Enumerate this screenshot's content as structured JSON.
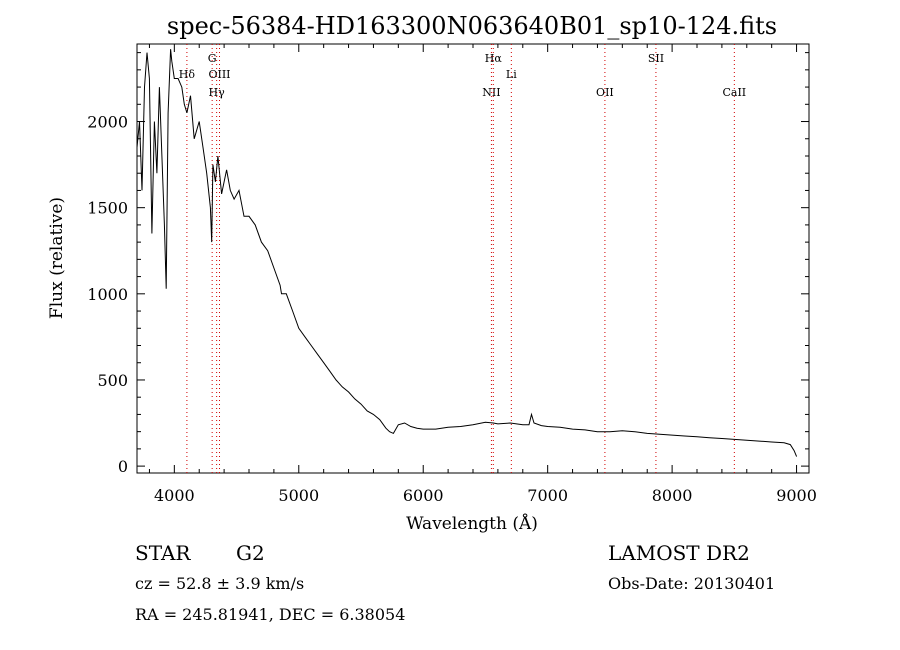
{
  "chart_data": {
    "type": "line",
    "title": "spec-56384-HD163300N063640B01_sp10-124.fits",
    "xlabel": "Wavelength (Å)",
    "ylabel": "Flux (relative)",
    "xlim": [
      3700,
      9100
    ],
    "ylim": [
      -40,
      2450
    ],
    "x_ticks": [
      4000,
      5000,
      6000,
      7000,
      8000,
      9000
    ],
    "x_tick_labels": [
      "4000",
      "5000",
      "6000",
      "7000",
      "8000",
      "9000"
    ],
    "y_ticks": [
      0,
      500,
      1000,
      1500,
      2000
    ],
    "y_tick_labels": [
      "0",
      "500",
      "1000",
      "1500",
      "2000"
    ],
    "grid": false,
    "series": [
      {
        "x": [
          3700,
          3720,
          3740,
          3760,
          3780,
          3800,
          3820,
          3840,
          3860,
          3880,
          3900,
          3920,
          3935,
          3950,
          3970,
          3980,
          4000,
          4030,
          4060,
          4080,
          4101,
          4130,
          4160,
          4200,
          4230,
          4260,
          4290,
          4300,
          4310,
          4330,
          4350,
          4380,
          4420,
          4450,
          4480,
          4520,
          4560,
          4600,
          4650,
          4700,
          4750,
          4800,
          4850,
          4861,
          4900,
          4950,
          5000,
          5050,
          5100,
          5150,
          5200,
          5250,
          5300,
          5350,
          5400,
          5450,
          5500,
          5550,
          5600,
          5650,
          5700,
          5730,
          5760,
          5800,
          5850,
          5900,
          5950,
          6000,
          6100,
          6200,
          6300,
          6400,
          6500,
          6563,
          6600,
          6700,
          6800,
          6850,
          6870,
          6890,
          6950,
          7000,
          7100,
          7200,
          7300,
          7400,
          7500,
          7600,
          7700,
          7800,
          7900,
          8000,
          8100,
          8200,
          8300,
          8400,
          8500,
          8600,
          8700,
          8800,
          8900,
          8950,
          8980,
          9000
        ],
        "y": [
          1850,
          2000,
          1600,
          2200,
          2400,
          2250,
          1350,
          2000,
          1700,
          2200,
          1800,
          1400,
          1030,
          2050,
          2420,
          2350,
          2250,
          2250,
          2200,
          2100,
          2050,
          2150,
          1900,
          2000,
          1850,
          1700,
          1500,
          1300,
          1750,
          1650,
          1800,
          1580,
          1720,
          1600,
          1550,
          1600,
          1450,
          1450,
          1400,
          1300,
          1250,
          1150,
          1050,
          1000,
          1000,
          900,
          800,
          750,
          700,
          650,
          600,
          550,
          500,
          460,
          430,
          390,
          360,
          320,
          300,
          270,
          220,
          200,
          190,
          240,
          250,
          230,
          220,
          215,
          215,
          225,
          230,
          240,
          255,
          250,
          245,
          250,
          240,
          240,
          300,
          250,
          235,
          230,
          225,
          215,
          210,
          200,
          200,
          205,
          200,
          190,
          185,
          180,
          175,
          170,
          165,
          160,
          155,
          150,
          145,
          140,
          135,
          125,
          90,
          55
        ]
      }
    ],
    "line_markers": [
      {
        "wavelength": 4101,
        "label": "Hδ",
        "row": 1
      },
      {
        "wavelength": 4304,
        "label": "G",
        "row": 0
      },
      {
        "wavelength": 4340,
        "label": "Hγ",
        "row": 2
      },
      {
        "wavelength": 4363,
        "label": "OIII",
        "row": 1
      },
      {
        "wavelength": 6548,
        "label": "NII",
        "row": 2
      },
      {
        "wavelength": 6563,
        "label": "Hα",
        "row": 0
      },
      {
        "wavelength": 6708,
        "label": "Li",
        "row": 1
      },
      {
        "wavelength": 7460,
        "label": "OII",
        "row": 2
      },
      {
        "wavelength": 7870,
        "label": "SII",
        "row": 0
      },
      {
        "wavelength": 8500,
        "label": "CaII",
        "row": 2
      }
    ],
    "colors": {
      "line": "#000000",
      "marker": "#d00000"
    }
  },
  "info": {
    "object_class": "STAR",
    "subclass": "G2",
    "survey": "LAMOST DR2",
    "cz": "cz = 52.8 ± 3.9 km/s",
    "obs_date": "Obs-Date: 20130401",
    "coords": "RA = 245.81941, DEC =   6.38054"
  }
}
